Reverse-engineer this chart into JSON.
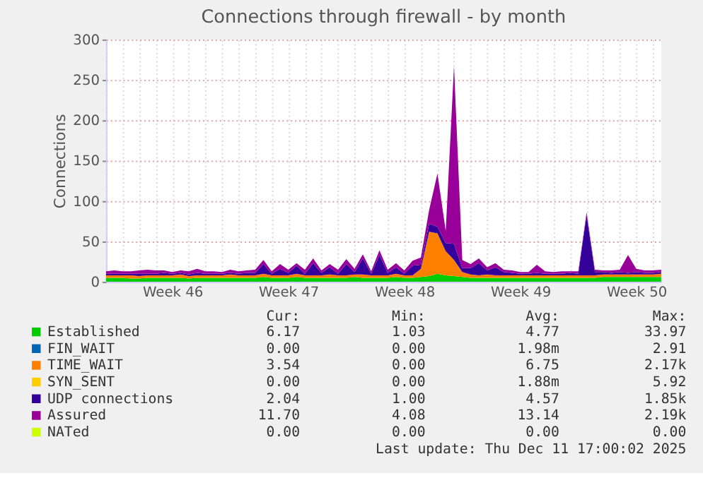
{
  "chart_data": {
    "type": "area",
    "stacked": true,
    "title": "Connections through firewall - by month",
    "ylabel": "Connections",
    "categories": [
      null,
      null,
      null,
      null,
      null,
      null,
      null,
      null,
      "Week 46",
      null,
      null,
      null,
      null,
      null,
      null,
      null,
      null,
      null,
      null,
      null,
      null,
      null,
      "Week 47",
      null,
      null,
      null,
      null,
      null,
      null,
      null,
      null,
      null,
      null,
      null,
      null,
      null,
      "Week 48",
      null,
      null,
      null,
      null,
      null,
      null,
      null,
      null,
      null,
      null,
      null,
      null,
      null,
      "Week 49",
      null,
      null,
      null,
      null,
      null,
      null,
      null,
      null,
      null,
      null,
      null,
      null,
      null,
      "Week 50",
      null,
      null,
      null
    ],
    "ylim": [
      0,
      300
    ],
    "yticks": [
      0,
      50,
      100,
      150,
      200,
      250,
      300
    ],
    "grid": true,
    "legend": "bottom",
    "series": [
      {
        "name": "Established",
        "color": "#00cc00",
        "values": [
          5,
          5,
          5,
          4,
          4,
          5,
          5,
          5,
          5,
          5,
          4,
          5,
          5,
          5,
          5,
          5,
          5,
          5,
          5,
          6,
          5,
          5,
          5,
          6,
          5,
          5,
          5,
          5,
          5,
          5,
          6,
          5,
          5,
          5,
          5,
          6,
          5,
          5,
          6,
          7,
          10,
          8,
          7,
          6,
          5,
          5,
          5,
          5,
          5,
          5,
          5,
          5,
          5,
          5,
          5,
          5,
          5,
          5,
          5,
          5,
          6,
          6,
          6,
          6,
          6,
          6,
          6,
          6
        ]
      },
      {
        "name": "FIN_WAIT",
        "color": "#0066b3",
        "values": [
          null,
          null,
          null,
          null,
          null,
          null,
          null,
          null,
          null,
          null,
          null,
          null,
          null,
          null,
          null,
          null,
          null,
          null,
          null,
          null,
          null,
          null,
          null,
          null,
          null,
          null,
          null,
          null,
          null,
          null,
          null,
          null,
          null,
          null,
          null,
          null,
          null,
          null,
          null,
          null,
          null,
          null,
          null,
          null,
          null,
          null,
          null,
          null,
          null,
          null,
          null,
          null,
          null,
          null,
          null,
          null,
          null,
          null,
          null,
          null,
          null,
          null,
          null,
          null,
          null,
          null,
          null,
          null
        ]
      },
      {
        "name": "TIME_WAIT",
        "color": "#ff8000",
        "values": [
          3,
          3,
          3,
          4,
          3,
          3,
          3,
          3,
          3,
          4,
          3,
          3,
          3,
          3,
          3,
          4,
          3,
          3,
          3,
          4,
          3,
          3,
          3,
          4,
          3,
          3,
          3,
          4,
          3,
          3,
          3,
          4,
          3,
          3,
          3,
          4,
          3,
          3,
          10,
          55,
          50,
          30,
          20,
          6,
          4,
          3,
          4,
          3,
          3,
          3,
          3,
          3,
          3,
          3,
          3,
          3,
          3,
          3,
          3,
          3,
          3,
          3,
          3,
          3,
          3,
          3,
          3,
          4
        ]
      },
      {
        "name": "SYN_SENT",
        "color": "#ffcc00",
        "values": [
          null,
          null,
          null,
          null,
          null,
          null,
          null,
          null,
          null,
          null,
          null,
          null,
          null,
          null,
          null,
          null,
          null,
          null,
          null,
          null,
          null,
          null,
          null,
          null,
          null,
          null,
          null,
          null,
          null,
          null,
          null,
          null,
          null,
          null,
          null,
          null,
          null,
          null,
          null,
          null,
          null,
          null,
          null,
          null,
          null,
          null,
          null,
          null,
          null,
          null,
          null,
          null,
          null,
          null,
          null,
          null,
          null,
          null,
          null,
          null,
          null,
          null,
          null,
          null,
          null,
          null,
          null,
          null
        ]
      },
      {
        "name": "UDP connections",
        "color": "#330099",
        "values": [
          2,
          2,
          2,
          2,
          3,
          2,
          2,
          3,
          2,
          2,
          2,
          3,
          2,
          2,
          2,
          2,
          2,
          3,
          3,
          12,
          2,
          8,
          3,
          10,
          2,
          15,
          3,
          9,
          2,
          14,
          3,
          20,
          2,
          25,
          3,
          8,
          2,
          12,
          5,
          10,
          8,
          10,
          20,
          5,
          8,
          15,
          5,
          10,
          4,
          3,
          2,
          2,
          3,
          2,
          2,
          2,
          3,
          2,
          75,
          4,
          3,
          2,
          3,
          2,
          3,
          2,
          2,
          2
        ]
      },
      {
        "name": "Assured",
        "color": "#990099",
        "values": [
          3,
          4,
          3,
          3,
          4,
          5,
          4,
          3,
          2,
          3,
          4,
          5,
          3,
          3,
          2,
          4,
          3,
          3,
          4,
          5,
          3,
          6,
          4,
          3,
          5,
          6,
          3,
          4,
          5,
          6,
          4,
          5,
          3,
          6,
          4,
          5,
          4,
          6,
          9,
          17,
          66,
          15,
          220,
          10,
          5,
          6,
          4,
          5,
          3,
          3,
          2,
          2,
          10,
          3,
          2,
          3,
          2,
          3,
          3,
          3,
          2,
          3,
          3,
          22,
          4,
          3,
          3,
          3
        ]
      },
      {
        "name": "NATed",
        "color": "#ccff00",
        "values": [
          null,
          null,
          null,
          null,
          null,
          null,
          null,
          null,
          null,
          null,
          null,
          null,
          null,
          null,
          null,
          null,
          null,
          null,
          null,
          null,
          null,
          null,
          null,
          null,
          null,
          null,
          null,
          null,
          null,
          null,
          null,
          null,
          null,
          null,
          null,
          null,
          null,
          null,
          null,
          null,
          null,
          null,
          null,
          null,
          null,
          null,
          null,
          null,
          null,
          null,
          null,
          null,
          null,
          null,
          null,
          null,
          null,
          null,
          null,
          null,
          null,
          null,
          null,
          null,
          null,
          null,
          null,
          null
        ]
      }
    ],
    "annotations": [
      "Cur:",
      "Min:",
      "Avg:",
      "Max:",
      "6.17",
      "1.03",
      "4.77",
      "33.97",
      "0.00",
      "0.00",
      "1.98m",
      "2.91",
      "3.54",
      "0.00",
      "6.75",
      "2.17k",
      "0.00",
      "0.00",
      "1.88m",
      "5.92",
      "2.04",
      "1.00",
      "4.57",
      "1.85k",
      "11.70",
      "4.08",
      "13.14",
      "2.19k",
      "0.00",
      "0.00",
      "0.00",
      "0.00",
      "Last update: Thu Dec 11 17:00:02 2025"
    ]
  }
}
